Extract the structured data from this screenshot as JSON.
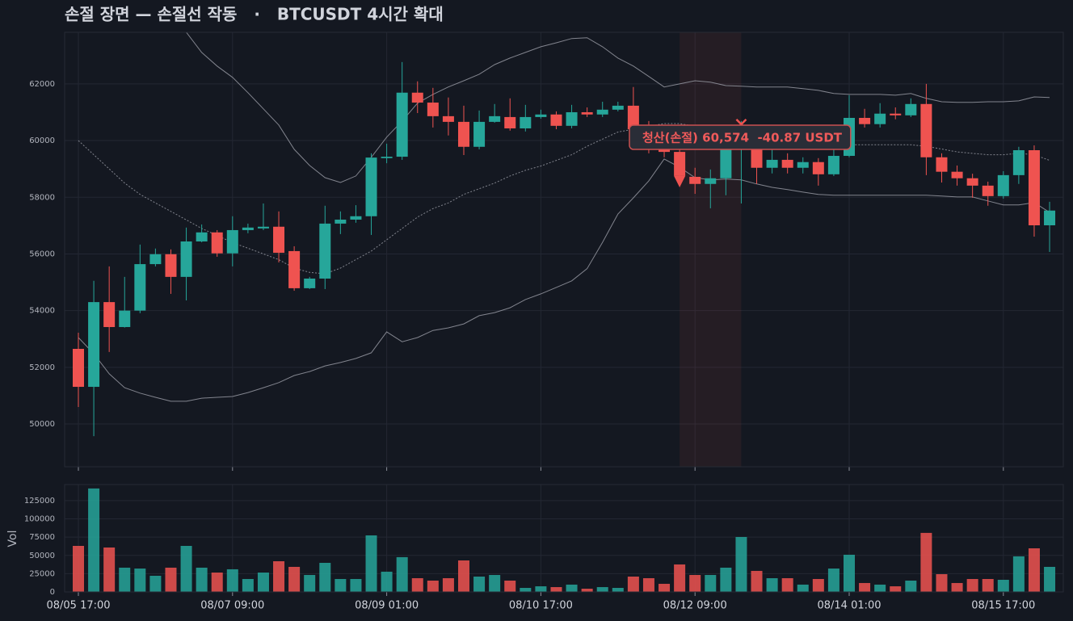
{
  "chart_data": [
    {
      "type": "candlestick",
      "title": "손절 장면 — 손절선 작동   ·   BTCUSDT 4시간 확대",
      "x": [
        "08/05 17:00",
        "08/05 21:00",
        "08/06 01:00",
        "08/06 05:00",
        "08/06 09:00",
        "08/06 13:00",
        "08/06 17:00",
        "08/06 21:00",
        "08/07 01:00",
        "08/07 05:00",
        "08/07 09:00",
        "08/07 13:00",
        "08/07 17:00",
        "08/07 21:00",
        "08/08 01:00",
        "08/08 05:00",
        "08/08 09:00",
        "08/08 13:00",
        "08/08 17:00",
        "08/08 21:00",
        "08/09 01:00",
        "08/09 05:00",
        "08/09 09:00",
        "08/09 13:00",
        "08/09 17:00",
        "08/09 21:00",
        "08/10 01:00",
        "08/10 05:00",
        "08/10 09:00",
        "08/10 13:00",
        "08/10 17:00",
        "08/10 21:00",
        "08/11 01:00",
        "08/11 05:00",
        "08/11 09:00",
        "08/11 13:00",
        "08/11 17:00",
        "08/11 21:00",
        "08/12 01:00",
        "08/12 05:00",
        "08/12 09:00",
        "08/12 13:00",
        "08/12 17:00",
        "08/12 21:00",
        "08/13 01:00",
        "08/13 05:00",
        "08/13 09:00",
        "08/13 13:00",
        "08/13 17:00",
        "08/13 21:00",
        "08/14 01:00",
        "08/14 05:00",
        "08/14 09:00",
        "08/14 13:00",
        "08/14 17:00",
        "08/14 21:00",
        "08/15 01:00",
        "08/15 05:00",
        "08/15 09:00",
        "08/15 13:00",
        "08/15 17:00",
        "08/15 21:00",
        "08/16 01:00",
        "08/16 05:00"
      ],
      "open": [
        52650,
        51310,
        54300,
        53420,
        54000,
        55640,
        55990,
        55190,
        56440,
        56760,
        56020,
        56840,
        56900,
        56960,
        56100,
        54790,
        55130,
        57070,
        57210,
        57330,
        59380,
        59430,
        61690,
        61340,
        60860,
        60660,
        59780,
        60660,
        60830,
        60430,
        60830,
        60920,
        60520,
        61000,
        60920,
        61090,
        61230,
        60400,
        59700,
        59600,
        58720,
        58470,
        58670,
        59830,
        59830,
        59040,
        59320,
        59040,
        59240,
        58810,
        59460,
        60800,
        60580,
        60950,
        60890,
        61290,
        59410,
        58900,
        58670,
        58410,
        58040,
        58780,
        59660,
        57010
      ],
      "high": [
        53220,
        55050,
        55560,
        55190,
        56330,
        56190,
        56160,
        56930,
        57040,
        56840,
        57330,
        57070,
        57780,
        57500,
        56270,
        55190,
        57700,
        57500,
        57720,
        59550,
        59890,
        62770,
        62090,
        61860,
        61520,
        61230,
        61060,
        61290,
        61490,
        61260,
        61090,
        61030,
        61260,
        61170,
        61370,
        61370,
        61890,
        60690,
        59980,
        59830,
        59040,
        58980,
        59980,
        60690,
        60400,
        59690,
        59550,
        59410,
        59380,
        59690,
        61600,
        61120,
        61320,
        61170,
        61490,
        62000,
        59550,
        59120,
        58830,
        58550,
        58920,
        59780,
        59830,
        57840
      ],
      "low": [
        50600,
        49570,
        52540,
        53400,
        53910,
        55560,
        54590,
        54360,
        56410,
        55900,
        55560,
        56730,
        56840,
        55700,
        54700,
        54760,
        54760,
        56700,
        57100,
        56670,
        59200,
        59320,
        60970,
        60460,
        60180,
        59490,
        59690,
        60630,
        60350,
        60320,
        60770,
        60400,
        60430,
        60830,
        60830,
        61030,
        60350,
        59550,
        59410,
        58410,
        58120,
        57610,
        58070,
        57780,
        58470,
        58840,
        58840,
        58840,
        58410,
        58750,
        59410,
        60460,
        60460,
        60750,
        60830,
        58780,
        58520,
        58410,
        57980,
        57700,
        57950,
        58470,
        56610,
        56070
      ],
      "close": [
        51310,
        54300,
        53420,
        54000,
        55640,
        55990,
        55190,
        56440,
        56760,
        56020,
        56840,
        56930,
        56960,
        56040,
        54790,
        55130,
        57070,
        57210,
        57330,
        59400,
        59430,
        61690,
        61340,
        60860,
        60660,
        59780,
        60660,
        60860,
        60430,
        60830,
        60920,
        60520,
        61000,
        60920,
        61090,
        61230,
        60400,
        59700,
        59600,
        58750,
        58470,
        58670,
        59830,
        59900,
        59040,
        59320,
        59040,
        59240,
        58810,
        59460,
        60800,
        60580,
        60950,
        60890,
        61290,
        59410,
        58900,
        58670,
        58410,
        58040,
        58780,
        59660,
        57010,
        57530
      ],
      "bands": {
        "upper": [
          67800,
          67400,
          66900,
          66300,
          65700,
          65000,
          64300,
          63820,
          63110,
          62630,
          62230,
          61690,
          61120,
          60550,
          59690,
          59120,
          58690,
          58520,
          58750,
          59410,
          60120,
          60690,
          61320,
          61630,
          61890,
          62110,
          62340,
          62680,
          62910,
          63110,
          63310,
          63450,
          63600,
          63630,
          63310,
          62910,
          62630,
          62260,
          61890,
          62000,
          62110,
          62060,
          61940,
          61920,
          61890,
          61890,
          61890,
          61830,
          61770,
          61660,
          61630,
          61630,
          61630,
          61600,
          61660,
          61490,
          61370,
          61350,
          61350,
          61370,
          61370,
          61400,
          61540,
          61520
        ],
        "middle": [
          60000,
          59500,
          59000,
          58500,
          58100,
          57800,
          57500,
          57200,
          56900,
          56650,
          56400,
          56200,
          56000,
          55800,
          55500,
          55350,
          55300,
          55500,
          55800,
          56100,
          56500,
          56900,
          57300,
          57600,
          57800,
          58100,
          58300,
          58500,
          58750,
          58950,
          59100,
          59300,
          59500,
          59800,
          60050,
          60300,
          60400,
          60500,
          60600,
          60600,
          60500,
          60300,
          60100,
          59950,
          59850,
          59800,
          59800,
          59800,
          59800,
          59800,
          59850,
          59850,
          59850,
          59850,
          59850,
          59800,
          59700,
          59600,
          59550,
          59500,
          59500,
          59550,
          59500,
          59300
        ],
        "lower": [
          53050,
          52480,
          51770,
          51280,
          51090,
          50940,
          50800,
          50800,
          50910,
          50940,
          50970,
          51110,
          51280,
          51460,
          51710,
          51850,
          52050,
          52170,
          52310,
          52510,
          53250,
          52900,
          53050,
          53300,
          53390,
          53530,
          53820,
          53930,
          54100,
          54390,
          54590,
          54820,
          55050,
          55480,
          56410,
          57410,
          57980,
          58580,
          59350,
          59060,
          58690,
          58610,
          58640,
          58610,
          58470,
          58350,
          58270,
          58180,
          58100,
          58070,
          58070,
          58070,
          58070,
          58070,
          58070,
          58070,
          58040,
          58010,
          58010,
          57870,
          57730,
          57730,
          57810,
          57470
        ]
      },
      "highlight": [
        "08/12 05:00",
        "08/12 21:00"
      ],
      "markers": [
        {
          "x": "08/12 05:00",
          "value": 58520,
          "shape": "triangle-down"
        },
        {
          "x": "08/12 21:00",
          "value": 60574,
          "shape": "x"
        }
      ],
      "annotation": "청산(손절) 60,574  -40.87 USDT",
      "up_color": "#26a69a",
      "down_color": "#ef5350",
      "band_color": "#9598a1",
      "ylim": [
        48490,
        63820
      ],
      "yticks": [
        50000,
        52000,
        54000,
        56000,
        58000,
        60000,
        62000
      ],
      "grid": true
    },
    {
      "type": "bar",
      "ylabel": "Vol",
      "values": [
        63000,
        141600,
        60800,
        33200,
        32000,
        22100,
        33200,
        63000,
        33200,
        26500,
        31000,
        17700,
        26500,
        42000,
        34300,
        23200,
        39800,
        17700,
        17700,
        77400,
        27700,
        47600,
        18800,
        15500,
        18800,
        43100,
        21000,
        23200,
        15500,
        5500,
        7700,
        6600,
        10000,
        4400,
        6600,
        5500,
        21000,
        18800,
        11100,
        37600,
        23200,
        23200,
        33200,
        75200,
        28800,
        18800,
        18800,
        10000,
        17700,
        32000,
        50900,
        12200,
        10000,
        7700,
        15500,
        80800,
        24300,
        12200,
        17700,
        17700,
        16600,
        48700,
        59700,
        34300
      ],
      "ylim": [
        0,
        147000
      ],
      "yticks": [
        0,
        25000,
        50000,
        75000,
        100000,
        125000
      ],
      "xticks": [
        "08/05 17:00",
        "08/07 09:00",
        "08/09 01:00",
        "08/10 17:00",
        "08/12 09:00",
        "08/14 01:00",
        "08/15 17:00"
      ],
      "grid": true
    }
  ]
}
